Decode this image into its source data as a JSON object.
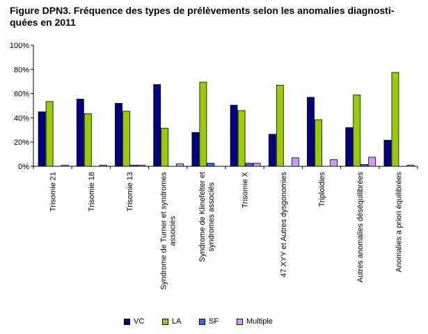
{
  "chart_data": {
    "type": "bar",
    "title": "Figure DPN3. Fréquence des types de prélèvements selon les anomalies diagnosti-quées en 2011",
    "title_lines": [
      "Figure DPN3. Fréquence des types de prélèvements selon les anomalies diagnosti-",
      "quées en 2011"
    ],
    "categories": [
      [
        "Trisomie 21"
      ],
      [
        "Trisomie 18"
      ],
      [
        "Trisomie 13"
      ],
      [
        "Syndrome de Turner et syndromes",
        "associés"
      ],
      [
        "Syndrome de Klinefelter et",
        "syndromes associés"
      ],
      [
        "Trisomie X"
      ],
      [
        "47 XYY et Autres dysgonomies"
      ],
      [
        "Triploïdies"
      ],
      [
        "Autres anomalies déséquilibrées"
      ],
      [
        "Anomalies a priori équilibrées"
      ]
    ],
    "series": [
      {
        "name": "VC",
        "color": "#000080",
        "values": [
          45,
          55.5,
          52,
          67.5,
          28,
          50.5,
          26.5,
          57,
          32,
          21.5
        ]
      },
      {
        "name": "LA",
        "color": "#99cc00",
        "values": [
          53.5,
          43.5,
          45.5,
          31.5,
          69.5,
          46,
          67,
          38.5,
          59,
          77.5
        ]
      },
      {
        "name": "SF",
        "color": "#3366ff",
        "values": [
          0,
          0,
          1,
          0,
          2.5,
          2.5,
          0,
          0,
          1.5,
          0
        ]
      },
      {
        "name": "Multiple",
        "color": "#cc99ff",
        "values": [
          1,
          1,
          1,
          2,
          0,
          2.5,
          7,
          5.5,
          7.5,
          1
        ]
      }
    ],
    "y_ticks": [
      "0%",
      "20%",
      "40%",
      "60%",
      "80%",
      "100%"
    ],
    "ylim": [
      0,
      100
    ],
    "xlabel": "",
    "ylabel": "",
    "grid": false,
    "legend_position": "bottom"
  }
}
